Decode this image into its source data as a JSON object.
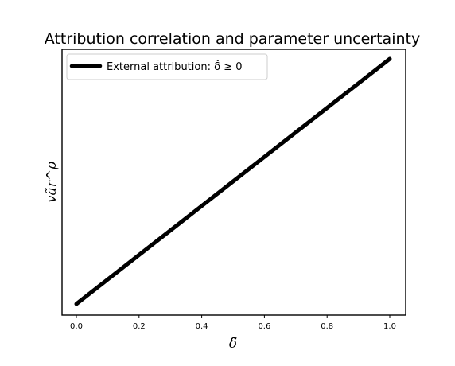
{
  "chart_data": {
    "type": "line",
    "title": "Attribution correlation and parameter uncertainty",
    "xlabel": "δ̃",
    "ylabel": "vãr^ρ",
    "xlim": [
      0.0,
      1.0
    ],
    "x_ticks": [
      "0.0",
      "0.2",
      "0.4",
      "0.6",
      "0.8",
      "1.0"
    ],
    "y_ticks": [],
    "grid": false,
    "legend_position": "top-left",
    "series": [
      {
        "name": "External attribution: δ̃ ≥ 0",
        "color": "#000000",
        "x": [
          0.0,
          0.1,
          0.2,
          0.3,
          0.4,
          0.5,
          0.6,
          0.7,
          0.8,
          0.9,
          1.0
        ],
        "y": [
          0.0,
          0.1,
          0.2,
          0.3,
          0.4,
          0.5,
          0.6,
          0.7,
          0.8,
          0.9,
          1.0
        ]
      }
    ]
  }
}
